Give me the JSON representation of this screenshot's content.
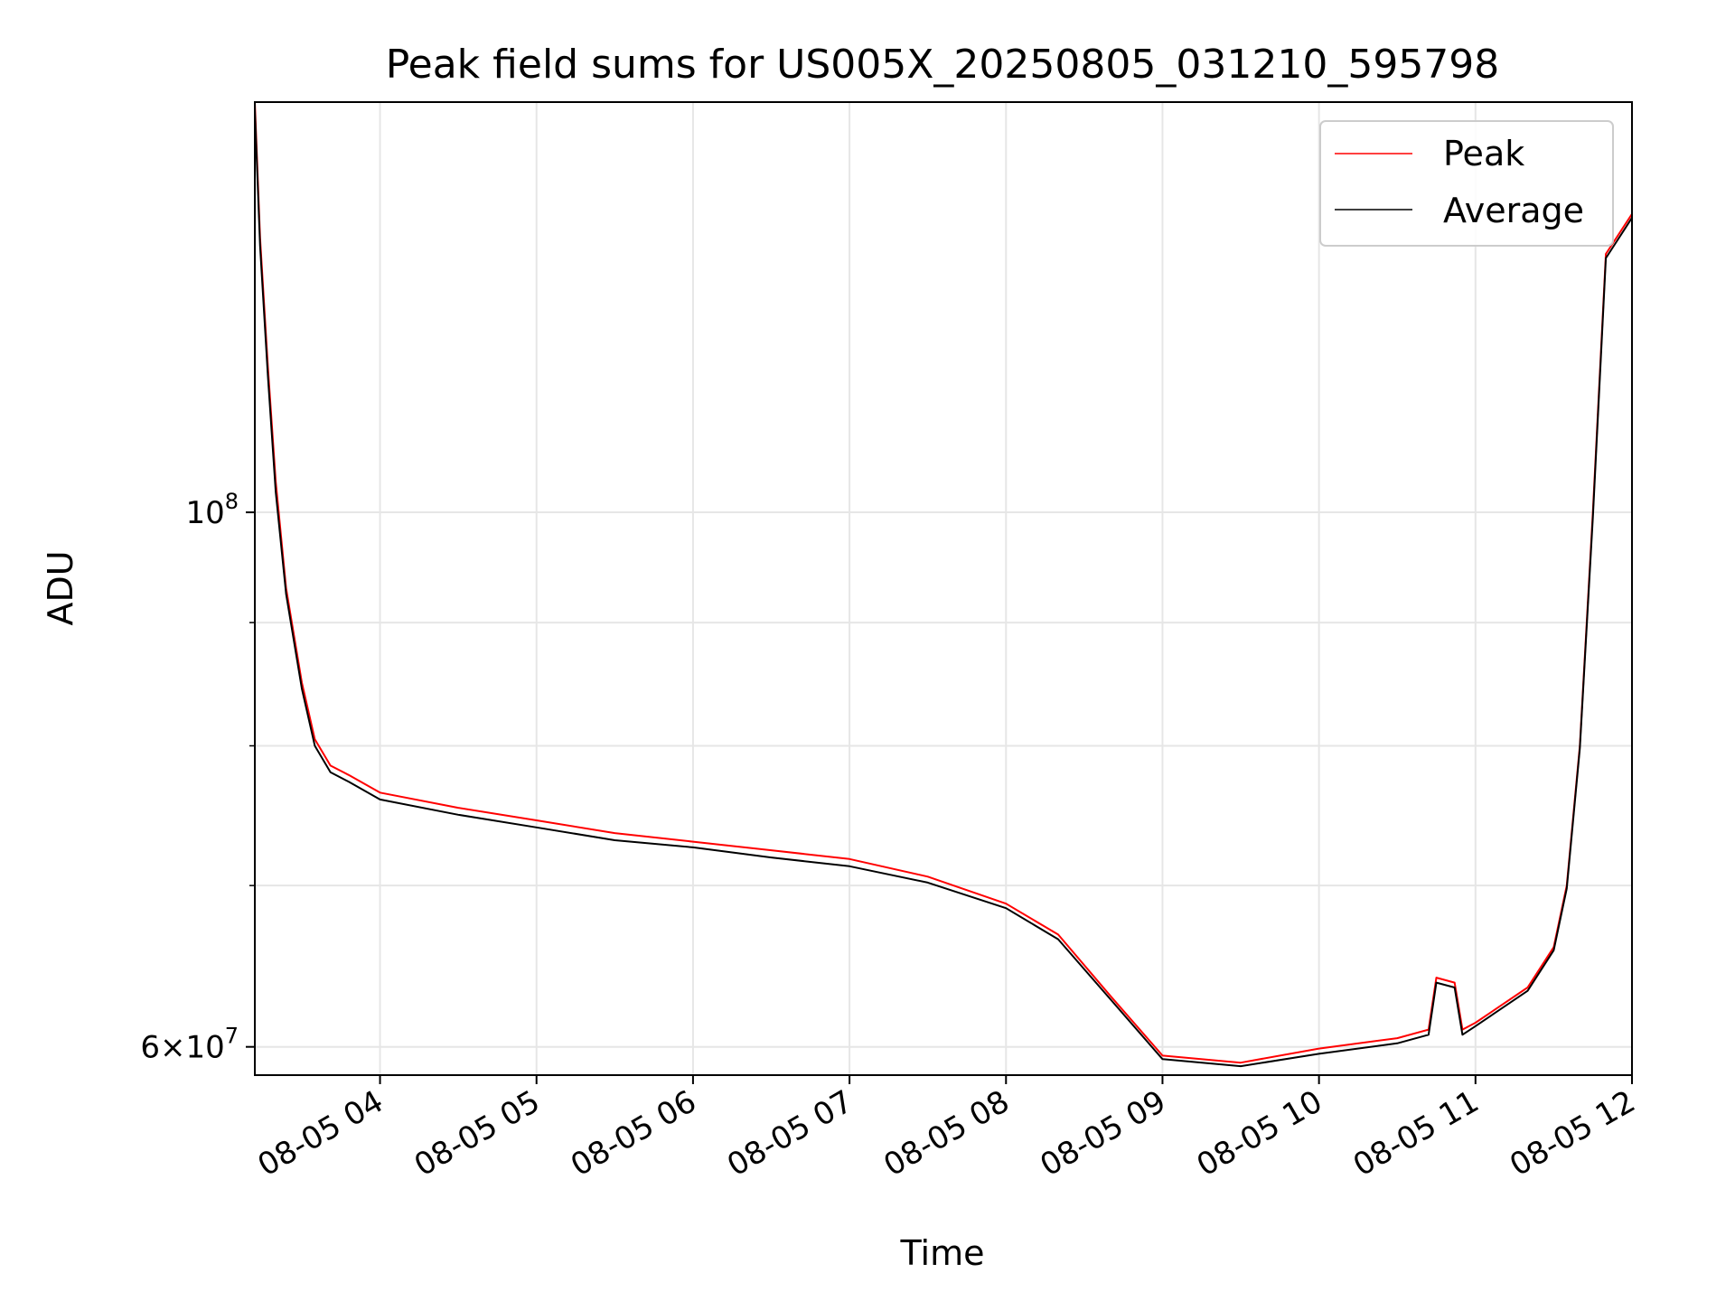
{
  "chart_data": {
    "type": "line",
    "title": "Peak field sums for US005X_20250805_031210_595798",
    "xlabel": "Time",
    "ylabel": "ADU",
    "y_scale": "log",
    "xlim": [
      "08-05 03:12",
      "08-05 12:00"
    ],
    "ylim": [
      58400000,
      148000000
    ],
    "x_ticks": [
      "08-05 04",
      "08-05 05",
      "08-05 06",
      "08-05 07",
      "08-05 08",
      "08-05 09",
      "08-05 10",
      "08-05 11",
      "08-05 12"
    ],
    "y_major_ticks": [
      {
        "value": 100000000,
        "label": "10^8"
      },
      {
        "value": 60000000,
        "label": "6×10^7"
      }
    ],
    "y_minor_ticks": [
      70000000,
      80000000,
      90000000
    ],
    "grid": true,
    "legend_position": "upper right",
    "series": [
      {
        "name": "Peak",
        "color": "#ff0000",
        "x": [
          "08-05 03:12",
          "08-05 03:14",
          "08-05 03:17",
          "08-05 03:20",
          "08-05 03:24",
          "08-05 03:30",
          "08-05 03:35",
          "08-05 03:41",
          "08-05 03:48",
          "08-05 04:00",
          "08-05 04:30",
          "08-05 05:00",
          "08-05 05:30",
          "08-05 06:00",
          "08-05 06:30",
          "08-05 07:00",
          "08-05 07:30",
          "08-05 08:00",
          "08-05 08:20",
          "08-05 08:40",
          "08-05 09:00",
          "08-05 09:30",
          "08-05 10:00",
          "08-05 10:30",
          "08-05 10:42",
          "08-05 10:45",
          "08-05 10:52",
          "08-05 10:55",
          "08-05 11:00",
          "08-05 11:20",
          "08-05 11:30",
          "08-05 11:35",
          "08-05 11:40",
          "08-05 11:45",
          "08-05 11:50",
          "08-05 12:00"
        ],
        "values": [
          148000000,
          130000000,
          115000000,
          103000000,
          93000000,
          85000000,
          80500000,
          78500000,
          77800000,
          76500000,
          75400000,
          74500000,
          73600000,
          73000000,
          72400000,
          71800000,
          70600000,
          68800000,
          66800000,
          63000000,
          59500000,
          59100000,
          59900000,
          60500000,
          61000000,
          64100000,
          63800000,
          61000000,
          61400000,
          63500000,
          66000000,
          70000000,
          80000000,
          100000000,
          128000000,
          133000000
        ]
      },
      {
        "name": "Average",
        "color": "#000000",
        "x": [
          "08-05 03:12",
          "08-05 03:14",
          "08-05 03:17",
          "08-05 03:20",
          "08-05 03:24",
          "08-05 03:30",
          "08-05 03:35",
          "08-05 03:41",
          "08-05 03:48",
          "08-05 04:00",
          "08-05 04:30",
          "08-05 05:00",
          "08-05 05:30",
          "08-05 06:00",
          "08-05 06:30",
          "08-05 07:00",
          "08-05 07:30",
          "08-05 08:00",
          "08-05 08:20",
          "08-05 08:40",
          "08-05 09:00",
          "08-05 09:30",
          "08-05 10:00",
          "08-05 10:30",
          "08-05 10:42",
          "08-05 10:45",
          "08-05 10:52",
          "08-05 10:55",
          "08-05 11:00",
          "08-05 11:20",
          "08-05 11:30",
          "08-05 11:35",
          "08-05 11:40",
          "08-05 11:45",
          "08-05 11:50",
          "08-05 12:00"
        ],
        "values": [
          147000000,
          129000000,
          114000000,
          102000000,
          92500000,
          84500000,
          80000000,
          78000000,
          77300000,
          76000000,
          74900000,
          74000000,
          73100000,
          72600000,
          71900000,
          71300000,
          70200000,
          68500000,
          66500000,
          62800000,
          59300000,
          58900000,
          59600000,
          60200000,
          60700000,
          63800000,
          63500000,
          60700000,
          61200000,
          63300000,
          65800000,
          69800000,
          79800000,
          99500000,
          127500000,
          132500000
        ]
      }
    ]
  }
}
